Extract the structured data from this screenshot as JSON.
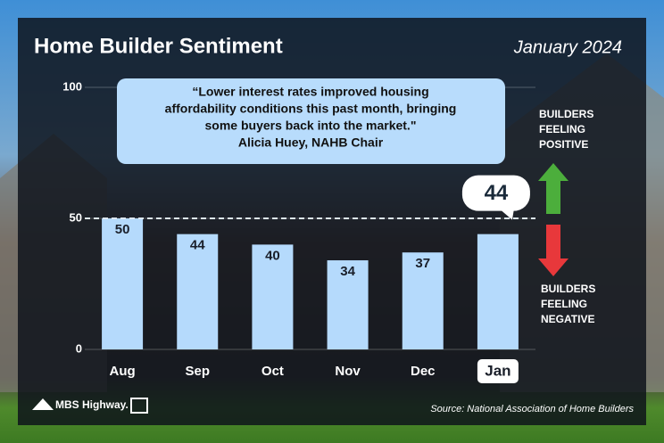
{
  "chart_data": {
    "type": "bar",
    "title": "Home Builder Sentiment",
    "subtitle": "January 2024",
    "categories": [
      "Aug",
      "Sep",
      "Oct",
      "Nov",
      "Dec",
      "Jan"
    ],
    "values": [
      50,
      44,
      40,
      34,
      37,
      44
    ],
    "color": "#b5dafc",
    "ylim": [
      0,
      100
    ],
    "yticks": [
      0,
      50,
      100
    ],
    "reference_line": 50,
    "annotations": {
      "quote": [
        "“Lower interest rates improved housing",
        "affordability conditions this past month, bringing",
        "some buyers back into the market.\""
      ],
      "attribution": "Alicia Huey, NAHB Chair",
      "positive": [
        "BUILDERS",
        "FEELING",
        "POSITIVE"
      ],
      "negative": [
        "BUILDERS",
        "FEELING",
        "NEGATIVE"
      ],
      "source": "Source: National Association of Home Builders",
      "logo": "MBS Highway."
    }
  }
}
